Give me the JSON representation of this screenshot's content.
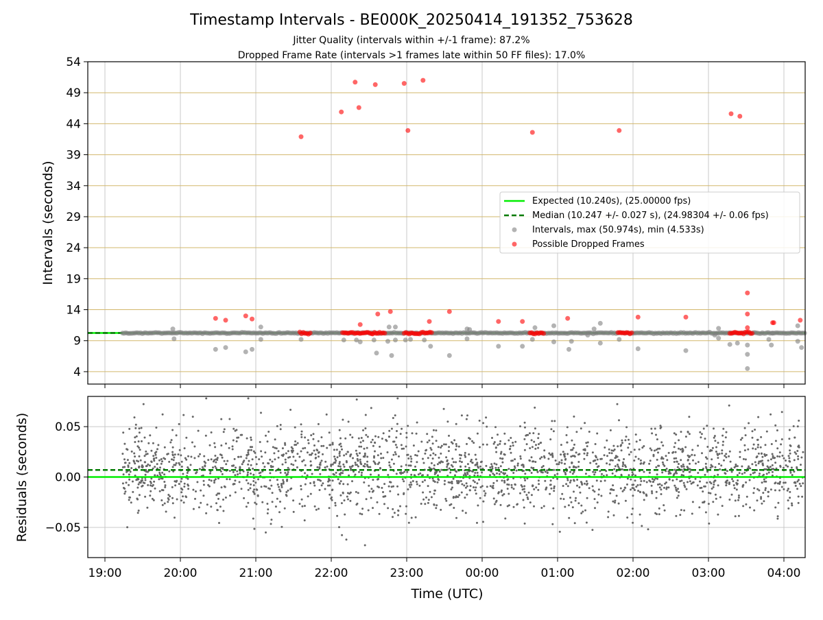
{
  "chart_data": {
    "type": "scatter",
    "title": "Timestamp Intervals - BE000K_20250414_191352_753628",
    "subtitle_1": "Jitter Quality (intervals within +/-1 frame): 87.2%",
    "subtitle_2": "Dropped Frame Rate (intervals >1 frames late within 50 FF files): 17.0%",
    "xlabel": "Time (UTC)",
    "x_ticks": [
      "19:00",
      "20:00",
      "21:00",
      "22:00",
      "23:00",
      "00:00",
      "01:00",
      "02:00",
      "03:00",
      "04:00"
    ],
    "top_panel": {
      "ylabel": "Intervals (seconds)",
      "ylim": [
        2,
        54
      ],
      "y_ticks": [
        "4",
        "9",
        "14",
        "19",
        "24",
        "29",
        "34",
        "39",
        "44",
        "49",
        "54"
      ],
      "grid": true,
      "legend_position": "center-right",
      "legend": [
        {
          "label": "Expected (10.240s), (25.00000 fps)",
          "kind": "line",
          "color": "#00ee00"
        },
        {
          "label": "Median (10.247 +/- 0.027 s), (24.98304 +/- 0.06 fps)",
          "kind": "dashed",
          "color": "#007a00"
        },
        {
          "label": "Intervals, max (50.974s), min (4.533s)",
          "kind": "marker",
          "color": "#808080"
        },
        {
          "label": "Possible Dropped Frames",
          "kind": "marker",
          "color": "#ff0000"
        }
      ],
      "expected_interval": 10.24,
      "median_interval": 10.247,
      "dropped_frames": [
        {
          "x": "20:28",
          "y": 12.6
        },
        {
          "x": "20:36",
          "y": 12.3
        },
        {
          "x": "20:52",
          "y": 13.0
        },
        {
          "x": "20:57",
          "y": 12.5
        },
        {
          "x": "21:36",
          "y": 41.9
        },
        {
          "x": "22:08",
          "y": 45.9
        },
        {
          "x": "22:19",
          "y": 50.7
        },
        {
          "x": "22:22",
          "y": 46.6
        },
        {
          "x": "22:23",
          "y": 11.6
        },
        {
          "x": "22:35",
          "y": 50.3
        },
        {
          "x": "22:37",
          "y": 13.3
        },
        {
          "x": "22:47",
          "y": 13.7
        },
        {
          "x": "22:58",
          "y": 50.5
        },
        {
          "x": "23:01",
          "y": 42.9
        },
        {
          "x": "23:13",
          "y": 51.0
        },
        {
          "x": "23:18",
          "y": 12.1
        },
        {
          "x": "23:34",
          "y": 13.7
        },
        {
          "x": "00:13",
          "y": 12.1
        },
        {
          "x": "00:32",
          "y": 12.1
        },
        {
          "x": "00:40",
          "y": 42.6
        },
        {
          "x": "01:08",
          "y": 12.6
        },
        {
          "x": "01:49",
          "y": 42.9
        },
        {
          "x": "02:04",
          "y": 12.8
        },
        {
          "x": "02:42",
          "y": 12.8
        },
        {
          "x": "03:18",
          "y": 45.6
        },
        {
          "x": "03:25",
          "y": 45.2
        },
        {
          "x": "03:31",
          "y": 16.7
        },
        {
          "x": "03:31",
          "y": 13.3
        },
        {
          "x": "03:31",
          "y": 11.1
        },
        {
          "x": "03:51",
          "y": 11.9
        },
        {
          "x": "03:52",
          "y": 11.9
        },
        {
          "x": "04:13",
          "y": 12.3
        }
      ],
      "dropped_frame_clusters": [
        {
          "start": "21:35",
          "end": "21:44",
          "y": 10.24
        },
        {
          "start": "22:09",
          "end": "22:33",
          "y": 10.24
        },
        {
          "start": "22:33",
          "end": "22:43",
          "y": 10.24
        },
        {
          "start": "22:58",
          "end": "23:21",
          "y": 10.24
        },
        {
          "start": "00:38",
          "end": "00:50",
          "y": 10.24
        },
        {
          "start": "01:48",
          "end": "01:59",
          "y": 10.24
        },
        {
          "start": "03:17",
          "end": "03:36",
          "y": 10.24
        }
      ],
      "interval_outliers": [
        {
          "x": "19:54",
          "y": 10.9
        },
        {
          "x": "19:55",
          "y": 9.3
        },
        {
          "x": "20:28",
          "y": 7.6
        },
        {
          "x": "20:36",
          "y": 7.9
        },
        {
          "x": "20:52",
          "y": 7.2
        },
        {
          "x": "20:57",
          "y": 7.6
        },
        {
          "x": "21:04",
          "y": 9.2
        },
        {
          "x": "21:04",
          "y": 11.2
        },
        {
          "x": "21:36",
          "y": 9.2
        },
        {
          "x": "22:10",
          "y": 9.1
        },
        {
          "x": "22:20",
          "y": 9.1
        },
        {
          "x": "22:23",
          "y": 8.8
        },
        {
          "x": "22:34",
          "y": 9.1
        },
        {
          "x": "22:36",
          "y": 7.0
        },
        {
          "x": "22:45",
          "y": 8.9
        },
        {
          "x": "22:46",
          "y": 11.2
        },
        {
          "x": "22:48",
          "y": 6.6
        },
        {
          "x": "22:51",
          "y": 9.1
        },
        {
          "x": "22:51",
          "y": 11.2
        },
        {
          "x": "22:59",
          "y": 9.1
        },
        {
          "x": "23:03",
          "y": 9.2
        },
        {
          "x": "23:14",
          "y": 9.1
        },
        {
          "x": "23:19",
          "y": 8.1
        },
        {
          "x": "23:34",
          "y": 6.6
        },
        {
          "x": "23:48",
          "y": 9.3
        },
        {
          "x": "23:48",
          "y": 10.9
        },
        {
          "x": "23:50",
          "y": 10.8
        },
        {
          "x": "00:13",
          "y": 8.1
        },
        {
          "x": "00:32",
          "y": 8.1
        },
        {
          "x": "00:40",
          "y": 9.2
        },
        {
          "x": "00:42",
          "y": 11.1
        },
        {
          "x": "00:57",
          "y": 8.8
        },
        {
          "x": "00:57",
          "y": 11.4
        },
        {
          "x": "01:09",
          "y": 7.6
        },
        {
          "x": "01:11",
          "y": 8.9
        },
        {
          "x": "01:24",
          "y": 9.9
        },
        {
          "x": "01:29",
          "y": 10.9
        },
        {
          "x": "01:34",
          "y": 8.6
        },
        {
          "x": "01:34",
          "y": 11.8
        },
        {
          "x": "01:49",
          "y": 9.2
        },
        {
          "x": "02:04",
          "y": 7.7
        },
        {
          "x": "02:42",
          "y": 7.4
        },
        {
          "x": "03:05",
          "y": 9.9
        },
        {
          "x": "03:08",
          "y": 9.4
        },
        {
          "x": "03:08",
          "y": 11.0
        },
        {
          "x": "03:17",
          "y": 8.4
        },
        {
          "x": "03:23",
          "y": 8.6
        },
        {
          "x": "03:31",
          "y": 8.3
        },
        {
          "x": "03:31",
          "y": 6.8
        },
        {
          "x": "03:31",
          "y": 4.5
        },
        {
          "x": "03:48",
          "y": 9.2
        },
        {
          "x": "03:50",
          "y": 8.3
        },
        {
          "x": "03:51",
          "y": 10.2
        },
        {
          "x": "04:11",
          "y": 8.9
        },
        {
          "x": "04:11",
          "y": 11.4
        },
        {
          "x": "04:14",
          "y": 7.9
        }
      ]
    },
    "bottom_panel": {
      "ylabel": "Residuals (seconds)",
      "ylim": [
        -0.08,
        0.08
      ],
      "y_ticks": [
        "−0.05",
        "0.00",
        "0.05"
      ],
      "grid": true,
      "expected_residual": 0.0,
      "median_residual": 0.007,
      "residual_range_approx": [
        -0.074,
        0.078
      ]
    },
    "colors": {
      "expected": "#00ee00",
      "median": "#007a00",
      "intervals": "#808080",
      "dropped": "#ff0000",
      "hgrid": "#d2b76b",
      "vgrid": "#c8c8c8"
    }
  }
}
